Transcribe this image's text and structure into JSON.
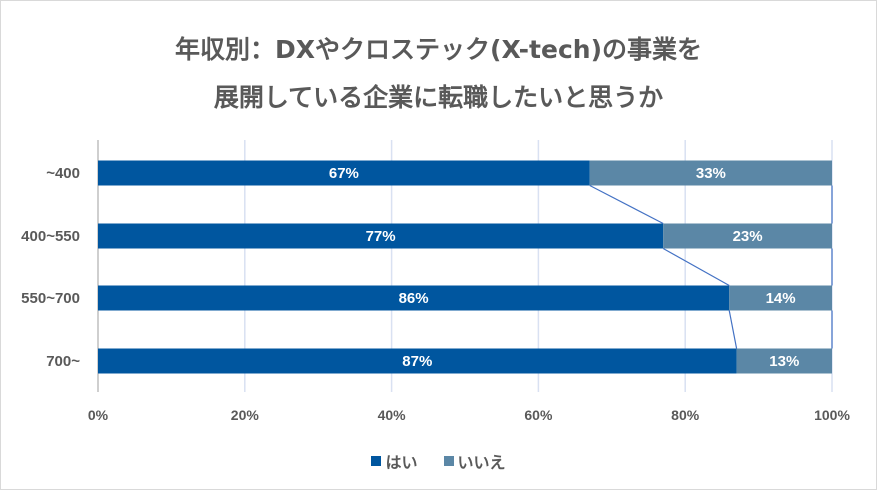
{
  "chart_data": {
    "type": "bar",
    "orientation": "horizontal",
    "stacked": "percent",
    "title_lines": [
      "年収別：DXやクロステック(X-tech)の事業を",
      "展開している企業に転職したいと思うか"
    ],
    "categories": [
      "~400",
      "400~550",
      "550~700",
      "700~"
    ],
    "series": [
      {
        "name": "はい",
        "values": [
          67,
          77,
          86,
          87
        ],
        "labels": [
          "67%",
          "77%",
          "86%",
          "87%"
        ],
        "color": "#00569f"
      },
      {
        "name": "いいえ",
        "values": [
          33,
          23,
          14,
          13
        ],
        "labels": [
          "33%",
          "23%",
          "14%",
          "13%"
        ],
        "color": "#5b87a6"
      }
    ],
    "xlim": [
      0,
      100
    ],
    "xticks": [
      "0%",
      "20%",
      "40%",
      "60%",
      "80%",
      "100%"
    ],
    "grid": true,
    "series_lines": true,
    "series_line_color": "#4472c4",
    "legend_position": "bottom"
  }
}
